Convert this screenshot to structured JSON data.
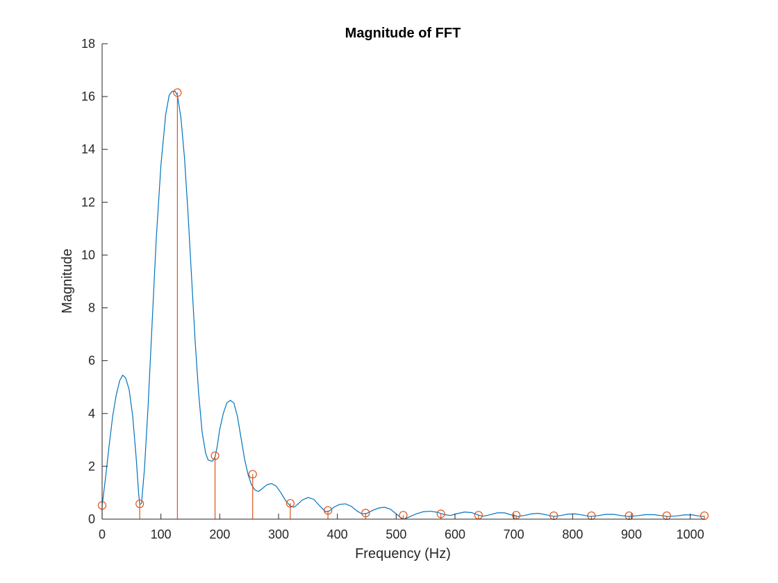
{
  "chart_data": {
    "type": "line",
    "title": "Magnitude of FFT",
    "xlabel": "Frequency (Hz)",
    "ylabel": "Magnitude",
    "xlim": [
      0,
      1024
    ],
    "ylim": [
      0,
      18
    ],
    "xticks": [
      0,
      100,
      200,
      300,
      400,
      500,
      600,
      700,
      800,
      900,
      1000
    ],
    "yticks": [
      0,
      2,
      4,
      6,
      8,
      10,
      12,
      14,
      16,
      18
    ],
    "grid": false,
    "colors": {
      "curve": "#0072BD",
      "stem": "#D95319",
      "axis": "#262626"
    },
    "series": [
      {
        "kind": "line",
        "points": [
          [
            0,
            0.5
          ],
          [
            6,
            1.6
          ],
          [
            12,
            2.8
          ],
          [
            18,
            3.9
          ],
          [
            24,
            4.7
          ],
          [
            30,
            5.25
          ],
          [
            35,
            5.45
          ],
          [
            40,
            5.35
          ],
          [
            46,
            4.9
          ],
          [
            52,
            3.9
          ],
          [
            58,
            2.3
          ],
          [
            62,
            1.0
          ],
          [
            64,
            0.55
          ],
          [
            67,
            0.6
          ],
          [
            72,
            1.9
          ],
          [
            78,
            4.2
          ],
          [
            85,
            7.4
          ],
          [
            92,
            10.6
          ],
          [
            100,
            13.4
          ],
          [
            108,
            15.3
          ],
          [
            114,
            16.05
          ],
          [
            119,
            16.2
          ],
          [
            124,
            16.2
          ],
          [
            128,
            16.05
          ],
          [
            134,
            15.2
          ],
          [
            140,
            13.7
          ],
          [
            146,
            11.6
          ],
          [
            152,
            9.2
          ],
          [
            158,
            6.8
          ],
          [
            164,
            4.8
          ],
          [
            170,
            3.3
          ],
          [
            176,
            2.5
          ],
          [
            180,
            2.25
          ],
          [
            185,
            2.2
          ],
          [
            188,
            2.2
          ],
          [
            192,
            2.35
          ],
          [
            196,
            2.8
          ],
          [
            200,
            3.4
          ],
          [
            206,
            4.0
          ],
          [
            212,
            4.4
          ],
          [
            218,
            4.5
          ],
          [
            224,
            4.4
          ],
          [
            230,
            3.9
          ],
          [
            236,
            3.1
          ],
          [
            242,
            2.3
          ],
          [
            248,
            1.7
          ],
          [
            254,
            1.3
          ],
          [
            260,
            1.1
          ],
          [
            266,
            1.05
          ],
          [
            272,
            1.15
          ],
          [
            280,
            1.3
          ],
          [
            288,
            1.35
          ],
          [
            296,
            1.25
          ],
          [
            304,
            1.0
          ],
          [
            312,
            0.7
          ],
          [
            320,
            0.5
          ],
          [
            326,
            0.45
          ],
          [
            332,
            0.55
          ],
          [
            340,
            0.72
          ],
          [
            350,
            0.82
          ],
          [
            360,
            0.75
          ],
          [
            370,
            0.5
          ],
          [
            380,
            0.28
          ],
          [
            386,
            0.3
          ],
          [
            394,
            0.45
          ],
          [
            404,
            0.56
          ],
          [
            414,
            0.58
          ],
          [
            424,
            0.48
          ],
          [
            434,
            0.3
          ],
          [
            442,
            0.2
          ],
          [
            450,
            0.22
          ],
          [
            460,
            0.33
          ],
          [
            470,
            0.42
          ],
          [
            480,
            0.45
          ],
          [
            490,
            0.38
          ],
          [
            500,
            0.2
          ],
          [
            508,
            0.05
          ],
          [
            514,
            0.0
          ],
          [
            522,
            0.08
          ],
          [
            534,
            0.2
          ],
          [
            546,
            0.28
          ],
          [
            558,
            0.3
          ],
          [
            570,
            0.26
          ],
          [
            582,
            0.17
          ],
          [
            592,
            0.14
          ],
          [
            604,
            0.21
          ],
          [
            616,
            0.27
          ],
          [
            628,
            0.25
          ],
          [
            640,
            0.15
          ],
          [
            648,
            0.11
          ],
          [
            660,
            0.17
          ],
          [
            672,
            0.24
          ],
          [
            684,
            0.24
          ],
          [
            696,
            0.16
          ],
          [
            706,
            0.1
          ],
          [
            718,
            0.14
          ],
          [
            730,
            0.2
          ],
          [
            742,
            0.22
          ],
          [
            754,
            0.17
          ],
          [
            768,
            0.1
          ],
          [
            780,
            0.14
          ],
          [
            792,
            0.19
          ],
          [
            804,
            0.2
          ],
          [
            816,
            0.16
          ],
          [
            830,
            0.1
          ],
          [
            842,
            0.13
          ],
          [
            856,
            0.18
          ],
          [
            870,
            0.18
          ],
          [
            884,
            0.13
          ],
          [
            896,
            0.1
          ],
          [
            910,
            0.13
          ],
          [
            924,
            0.17
          ],
          [
            938,
            0.17
          ],
          [
            952,
            0.13
          ],
          [
            962,
            0.1
          ],
          [
            976,
            0.12
          ],
          [
            990,
            0.16
          ],
          [
            1004,
            0.16
          ],
          [
            1014,
            0.12
          ],
          [
            1024,
            0.1
          ]
        ]
      },
      {
        "kind": "stem",
        "points": [
          [
            0,
            0.52
          ],
          [
            64,
            0.58
          ],
          [
            128,
            16.15
          ],
          [
            192,
            2.4
          ],
          [
            256,
            1.7
          ],
          [
            320,
            0.6
          ],
          [
            384,
            0.33
          ],
          [
            448,
            0.23
          ],
          [
            512,
            0.15
          ],
          [
            576,
            0.2
          ],
          [
            640,
            0.15
          ],
          [
            704,
            0.15
          ],
          [
            768,
            0.13
          ],
          [
            832,
            0.13
          ],
          [
            896,
            0.13
          ],
          [
            960,
            0.13
          ],
          [
            1024,
            0.13
          ]
        ]
      }
    ]
  }
}
